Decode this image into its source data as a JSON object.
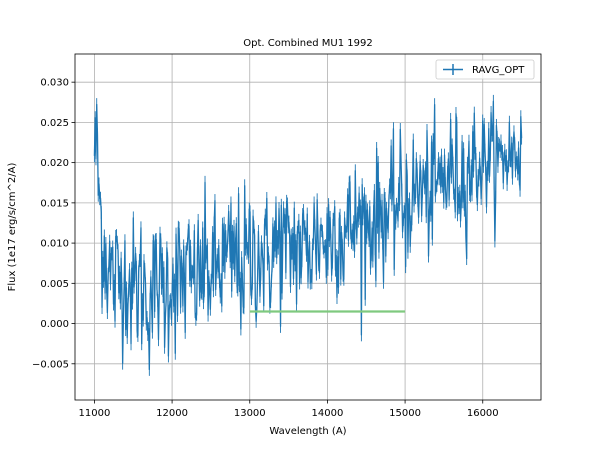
{
  "chart_data": {
    "type": "line",
    "title": "Opt. Combined MU1 1992",
    "xlabel": "Wavelength (A)",
    "ylabel": "Flux (1e17 erg/s/cm^2/A)",
    "xlim": [
      10750,
      16750
    ],
    "ylim": [
      -0.0095,
      0.0335
    ],
    "xticks": [
      11000,
      12000,
      13000,
      14000,
      15000,
      16000
    ],
    "yticks": [
      -0.005,
      0.0,
      0.005,
      0.01,
      0.015,
      0.02,
      0.025,
      0.03
    ],
    "xtick_labels": [
      "11000",
      "12000",
      "13000",
      "14000",
      "15000",
      "16000"
    ],
    "ytick_labels": [
      "−0.005",
      "0.000",
      "0.005",
      "0.010",
      "0.015",
      "0.020",
      "0.025",
      "0.030"
    ],
    "grid": true,
    "legend": {
      "position": "top-right",
      "entries": [
        "RAVG_OPT"
      ]
    },
    "series": [
      {
        "name": "RAVG_OPT",
        "color": "#1f77b4",
        "x": [
          11000,
          11100,
          11200,
          11300,
          11400,
          11500,
          11600,
          11700,
          11800,
          11900,
          12000,
          12100,
          12200,
          12300,
          12400,
          12500,
          12600,
          12700,
          12800,
          12900,
          13000,
          13100,
          13200,
          13300,
          13400,
          13500,
          13600,
          13700,
          13800,
          13900,
          14000,
          14100,
          14200,
          14300,
          14400,
          14500,
          14600,
          14700,
          14800,
          14900,
          15000,
          15100,
          15200,
          15300,
          15400,
          15500,
          15600,
          15700,
          15800,
          15900,
          16000,
          16100,
          16200,
          16300,
          16400,
          16500
        ],
        "y": [
          0.024,
          0.011,
          0.006,
          0.005,
          0.006,
          0.004,
          0.005,
          0.003,
          0.005,
          0.004,
          0.006,
          0.005,
          0.006,
          0.005,
          0.007,
          0.006,
          0.007,
          0.008,
          0.008,
          0.007,
          0.008,
          0.009,
          0.008,
          0.009,
          0.01,
          0.009,
          0.01,
          0.009,
          0.01,
          0.011,
          0.01,
          0.012,
          0.011,
          0.012,
          0.013,
          0.012,
          0.013,
          0.014,
          0.013,
          0.015,
          0.015,
          0.016,
          0.017,
          0.016,
          0.017,
          0.018,
          0.019,
          0.018,
          0.019,
          0.02,
          0.02,
          0.021,
          0.02,
          0.021,
          0.021,
          0.022
        ],
        "noise": [
          0.005,
          0.006,
          0.006,
          0.006,
          0.005,
          0.006,
          0.006,
          0.006,
          0.005,
          0.006,
          0.006,
          0.006,
          0.006,
          0.005,
          0.006,
          0.005,
          0.006,
          0.005,
          0.006,
          0.006,
          0.006,
          0.006,
          0.005,
          0.006,
          0.006,
          0.005,
          0.006,
          0.005,
          0.006,
          0.005,
          0.006,
          0.005,
          0.006,
          0.005,
          0.005,
          0.006,
          0.005,
          0.005,
          0.005,
          0.005,
          0.006,
          0.005,
          0.005,
          0.005,
          0.005,
          0.005,
          0.005,
          0.005,
          0.005,
          0.005,
          0.004,
          0.004,
          0.004,
          0.004,
          0.004,
          0.004
        ]
      },
      {
        "color": "#7fc97f",
        "x": [
          13000,
          15000
        ],
        "y": [
          0.0015,
          0.0015
        ]
      }
    ]
  }
}
